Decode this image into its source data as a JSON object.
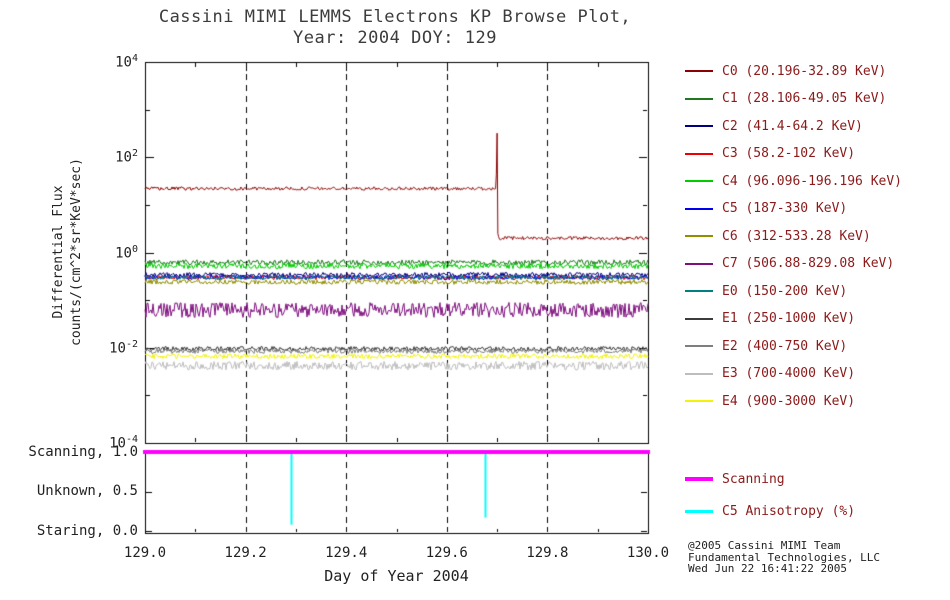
{
  "title": {
    "line1": "Cassini MIMI LEMMS Electrons KP Browse Plot,",
    "line2": "Year: 2004 DOY: 129"
  },
  "axes": {
    "y_label_line1": "Differential Flux",
    "y_label_line2": "counts/(cm^2*sr*KeV*sec)",
    "x_label": "Day of Year 2004",
    "y_ticks": [
      {
        "base": "10",
        "exp": "4"
      },
      {
        "base": "10",
        "exp": "2"
      },
      {
        "base": "10",
        "exp": "0"
      },
      {
        "base": "10",
        "exp": "-2"
      },
      {
        "base": "10",
        "exp": "-4"
      }
    ],
    "x_ticks": [
      "129.0",
      "129.2",
      "129.4",
      "129.6",
      "129.8",
      "130.0"
    ],
    "panel2_ticks": [
      "Scanning, 1.0",
      "Unknown, 0.5",
      "Staring, 0.0"
    ]
  },
  "legend": {
    "channels": [
      {
        "label": "C0 (20.196-32.89 KeV)",
        "color": "#8B0000"
      },
      {
        "label": "C1 (28.106-49.05 KeV)",
        "color": "#1F7A1F"
      },
      {
        "label": "C2 (41.4-64.2 KeV)",
        "color": "#000080"
      },
      {
        "label": "C3 (58.2-102 KeV)",
        "color": "#EE0000"
      },
      {
        "label": "C4 (96.096-196.196 KeV)",
        "color": "#00CC00"
      },
      {
        "label": "C5 (187-330 KeV)",
        "color": "#0000EE"
      },
      {
        "label": "C6 (312-533.28 KeV)",
        "color": "#8F8F00"
      },
      {
        "label": "C7 (506.88-829.08 KeV)",
        "color": "#7D0E7D"
      },
      {
        "label": "E0 (150-200 KeV)",
        "color": "#008080"
      },
      {
        "label": "E1 (250-1000 KeV)",
        "color": "#3C3C3C"
      },
      {
        "label": "E2 (400-750 KeV)",
        "color": "#7F7F7F"
      },
      {
        "label": "E3 (700-4000 KeV)",
        "color": "#BDBDBD"
      },
      {
        "label": "E4 (900-3000 KeV)",
        "color": "#F2F20A"
      }
    ],
    "modes": [
      {
        "label": "Scanning",
        "color": "#FF00FF"
      },
      {
        "label": "C5 Anisotropy (%)",
        "color": "#00FFFF"
      }
    ]
  },
  "credit": {
    "line1": "@2005 Cassini MIMI Team",
    "line2": "Fundamental Technologies, LLC",
    "line3": "Wed Jun 22 16:41:22 2005"
  },
  "chart_data": {
    "type": "line",
    "title": "Cassini MIMI LEMMS Electrons KP Browse Plot, Year: 2004 DOY: 129",
    "xlabel": "Day of Year 2004",
    "ylabel": "Differential Flux counts/(cm^2*sr*KeV*sec)",
    "x_range": [
      129.0,
      130.0
    ],
    "y_scale": "log",
    "y_range": [
      0.0001,
      10000
    ],
    "x_gridlines": [
      129.2,
      129.4,
      129.6,
      129.8
    ],
    "grid_style": "vertical-dashed",
    "legend_position": "right",
    "series": [
      {
        "name": "C0",
        "color": "#8B0000",
        "noise_log": 0.035,
        "segments": [
          {
            "x0": 129.0,
            "x1": 129.697,
            "value": 22
          },
          {
            "x0": 129.703,
            "x1": 130.0,
            "value": 2.0
          }
        ],
        "spike": {
          "x": 129.7,
          "peak": 320
        }
      },
      {
        "name": "C1",
        "color": "#1F7A1F",
        "value": 0.62,
        "noise_log": 0.055
      },
      {
        "name": "C2",
        "color": "#000080",
        "value": 0.34,
        "noise_log": 0.05
      },
      {
        "name": "C3",
        "color": "#EE0000",
        "value": 0.3,
        "noise_log": 0.05
      },
      {
        "name": "C4",
        "color": "#00CC00",
        "value": 0.52,
        "noise_log": 0.06
      },
      {
        "name": "C5",
        "color": "#0000EE",
        "value": 0.3,
        "noise_log": 0.05
      },
      {
        "name": "C6",
        "color": "#8F8F00",
        "value": 0.24,
        "noise_log": 0.05
      },
      {
        "name": "C7",
        "color": "#7D0E7D",
        "value": 0.062,
        "noise_log": 0.16
      },
      {
        "name": "E0",
        "color": "#008080",
        "value": 0.3,
        "noise_log": 0.04
      },
      {
        "name": "E1",
        "color": "#3C3C3C",
        "value": 0.0095,
        "noise_log": 0.05
      },
      {
        "name": "E2",
        "color": "#7F7F7F",
        "value": 0.0085,
        "noise_log": 0.05
      },
      {
        "name": "E3",
        "color": "#BDBDBD",
        "value": 0.0042,
        "noise_log": 0.09
      },
      {
        "name": "E4",
        "color": "#F2F20A",
        "value": 0.0066,
        "noise_log": 0.05
      }
    ],
    "status_panel": {
      "y_ticks": [
        {
          "label": "Scanning",
          "value": 1.0
        },
        {
          "label": "Unknown",
          "value": 0.5
        },
        {
          "label": "Staring",
          "value": 0.0
        }
      ],
      "scanning_line": {
        "value": 1.0,
        "color": "#FF00FF"
      },
      "anisotropy_color": "#00FFFF",
      "anisotropy_dips": [
        {
          "x": 129.29,
          "min": 0.08
        },
        {
          "x": 129.675,
          "min": 0.17
        }
      ]
    }
  }
}
